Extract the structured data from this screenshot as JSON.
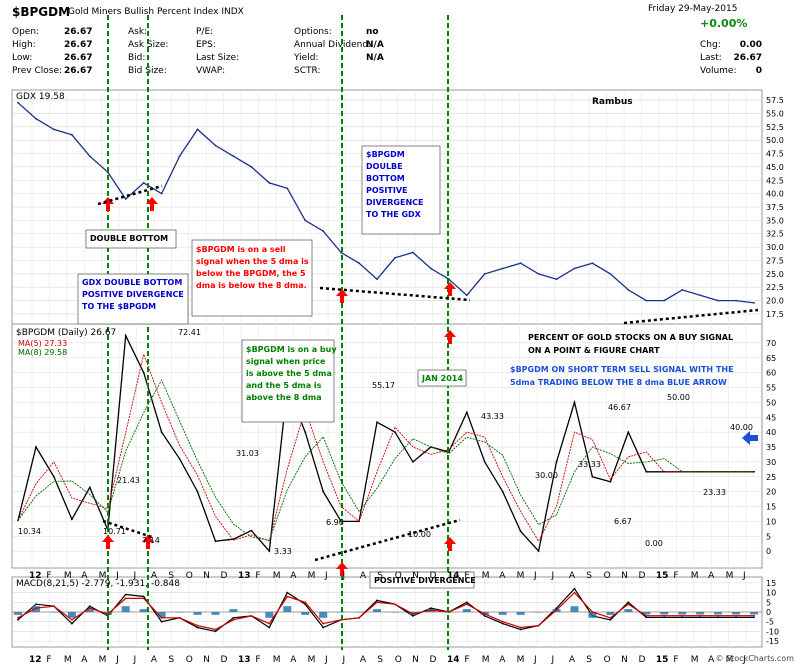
{
  "header": {
    "symbol": "$BPGDM",
    "title": "Gold Miners Bullish Percent Index",
    "exchange": "INDX",
    "date": "Friday  29-May-2015",
    "change_pct": "+0.00%",
    "quote_rows": [
      {
        "k1": "Open:",
        "v1": "26.67",
        "k2": "Ask:",
        "k3": "P/E:",
        "k4": "Options:",
        "v4": "no"
      },
      {
        "k1": "High:",
        "v1": "26.67",
        "k2": "Ask Size:",
        "k3": "EPS:",
        "k4": "Annual Dividend:",
        "v4": "N/A"
      },
      {
        "k1": "Low:",
        "v1": "26.67",
        "k2": "Bid:",
        "k3": "Last Size:",
        "k4": "Yield:",
        "v4": "N/A"
      },
      {
        "k1": "Prev Close:",
        "v1": "26.67",
        "k2": "Bid Size:",
        "k3": "VWAP:",
        "k4": "SCTR:",
        "v4": ""
      }
    ],
    "right_rows": [
      {
        "k": "Chg:",
        "v": "0.00"
      },
      {
        "k": "Last:",
        "v": "26.67"
      },
      {
        "k": "Volume:",
        "v": "0"
      }
    ]
  },
  "watermark": "© StockCharts.com",
  "colors": {
    "price_line": "#1a2f8c",
    "ma5": "#cc0000",
    "ma8": "#006600",
    "green_vline": "#008000",
    "red_arrow": "#ff0000",
    "annotation_red": "#ff0000",
    "annotation_blue": "#0000cc",
    "annotation_green": "#008000",
    "macd_hist": "#1f6fa8"
  },
  "chart_data": [
    {
      "type": "line",
      "title": "GDX 19.58",
      "attribution": "Rambus",
      "ylim": [
        16,
        59
      ],
      "yticks": [
        17.5,
        20.0,
        22.5,
        25.0,
        27.5,
        30.0,
        32.5,
        35.0,
        37.5,
        40.0,
        42.5,
        45.0,
        47.5,
        50.0,
        52.5,
        55.0,
        57.5
      ],
      "ytick_labels": [
        "17.5",
        "20.0",
        "22.5",
        "25.0",
        "27.5",
        "30.0",
        "32.5",
        "35.0",
        "37.5",
        "40.0",
        "42.5",
        "45.0",
        "47.5",
        "50.0",
        "52.5",
        "55.0",
        "57.5"
      ],
      "x": [
        0,
        1,
        2,
        3,
        4,
        5,
        6,
        7,
        8,
        9,
        10,
        11,
        12,
        13,
        14,
        15,
        16,
        17,
        18,
        19,
        20,
        21,
        22,
        23,
        24,
        25,
        26,
        27,
        28,
        29,
        30,
        31,
        32,
        33,
        34,
        35,
        36,
        37,
        38,
        39,
        40,
        41
      ],
      "series": [
        {
          "values": [
            57,
            54,
            52,
            51,
            47,
            44,
            39,
            42,
            40,
            47,
            52,
            49,
            47,
            45,
            42,
            41,
            35,
            33,
            29,
            27,
            24,
            28,
            29,
            26,
            24,
            21,
            25,
            26,
            27,
            25,
            24,
            26,
            27,
            25,
            22,
            20,
            20,
            22,
            21,
            20,
            20,
            19.58
          ]
        }
      ],
      "annotations": [
        "DOUBLE BOTTOM",
        "GDX DOUBLE BOTTOM POSITIVE DIVERGENCE TO THE $BPGDM",
        "$BPGDM is on a sell signal when the 5 dma is below the BPGDM, the 5 dma is below the 8 dma.",
        "$BPGDM DOULBE BOTTOM POSITIVE DIVERGENCE TO THE GDX"
      ]
    },
    {
      "type": "line",
      "title": "$BPGDM (Daily) 26.67",
      "legend": [
        "MA(5) 27.33",
        "MA(8) 29.58"
      ],
      "ylim": [
        -5,
        75
      ],
      "yticks": [
        0,
        5,
        10,
        15,
        20,
        25,
        30,
        35,
        40,
        45,
        50,
        55,
        60,
        65,
        70
      ],
      "ytick_labels": [
        "0",
        "5",
        "10",
        "15",
        "20",
        "25",
        "30",
        "35",
        "40",
        "45",
        "50",
        "55",
        "60",
        "65",
        "70"
      ],
      "x": [
        0,
        1,
        2,
        3,
        4,
        5,
        6,
        7,
        8,
        9,
        10,
        11,
        12,
        13,
        14,
        15,
        16,
        17,
        18,
        19,
        20,
        21,
        22,
        23,
        24,
        25,
        26,
        27,
        28,
        29,
        30,
        31,
        32,
        33,
        34,
        35,
        36,
        37,
        38,
        39,
        40,
        41
      ],
      "series": [
        {
          "name": "$BPGDM",
          "values": [
            10.34,
            35,
            25,
            10.71,
            21.43,
            7.14,
            72.41,
            60,
            40,
            31.03,
            20,
            3.33,
            4,
            6.9,
            0,
            55.17,
            40,
            20,
            10,
            10,
            43.33,
            40,
            30,
            35,
            33.33,
            46.67,
            30,
            20,
            6.67,
            0,
            30,
            50,
            25,
            23.33,
            40,
            26.67,
            26.67,
            26.67,
            26.67,
            26.67,
            26.67,
            26.67
          ]
        }
      ],
      "data_labels": [
        "10.34",
        "21.43",
        "10.71",
        "7.14",
        "72.41",
        "31.03",
        "3.33",
        "6.90",
        "55.17",
        "10.00",
        "43.33",
        "30.00",
        "33.33",
        "46.67",
        "6.67",
        "0.00",
        "50.00",
        "23.33",
        "40.00"
      ],
      "annotations": [
        "$BPGDM is on a buy signal when price is above the 5 dma and the 5 dma is above the 8 dma",
        "PERCENT OF GOLD STOCKS ON A BUY SIGNAL ON A POINT & FIGURE CHART",
        "$BPGDM ON SHORT TERM SELL SIGNAL WITH THE 5dma TRADING BELOW THE 8 dma BLUE ARROW",
        "JAN 2014",
        "POSITIVE DIVERGENCE"
      ]
    },
    {
      "type": "line",
      "title": "MACD(8,21,5) -2.779, -1.931, -0.848",
      "ylim": [
        -17,
        17
      ],
      "yticks": [
        -15,
        -10,
        -5,
        0,
        5,
        10,
        15
      ],
      "ytick_labels": [
        "-15",
        "-10",
        "-5",
        "0",
        "5",
        "10",
        "15"
      ],
      "x": [
        0,
        1,
        2,
        3,
        4,
        5,
        6,
        7,
        8,
        9,
        10,
        11,
        12,
        13,
        14,
        15,
        16,
        17,
        18,
        19,
        20,
        21,
        22,
        23,
        24,
        25,
        26,
        27,
        28,
        29,
        30,
        31,
        32,
        33,
        34,
        35,
        36,
        37,
        38,
        39,
        40,
        41
      ],
      "series": [
        {
          "name": "MACD",
          "values": [
            -4,
            4,
            3,
            -6,
            3,
            -2,
            9,
            8,
            -5,
            -3,
            -8,
            -10,
            -3,
            -2,
            -8,
            10,
            4,
            -8,
            -4,
            -3,
            6,
            4,
            -2,
            2,
            0,
            5,
            -2,
            -6,
            -9,
            -7,
            2,
            12,
            -2,
            -4,
            5,
            -2.779,
            -2.779,
            -2.779,
            -2.779,
            -2.779,
            -2.779,
            -2.779
          ]
        },
        {
          "name": "Signal",
          "values": [
            -3,
            2,
            3,
            -4,
            2,
            -1,
            7,
            7,
            -3,
            -3,
            -7,
            -9,
            -4,
            -2,
            -6,
            8,
            5,
            -6,
            -4,
            -3,
            5,
            4,
            -1,
            1,
            0,
            4,
            -1,
            -5,
            -8,
            -7,
            1,
            10,
            0,
            -3,
            4,
            -1.931,
            -1.931,
            -1.931,
            -1.931,
            -1.931,
            -1.931,
            -1.931
          ]
        }
      ]
    }
  ],
  "x_axis": {
    "labels": [
      "12",
      "F",
      "M",
      "A",
      "M",
      "J",
      "J",
      "A",
      "S",
      "O",
      "N",
      "D",
      "13",
      "F",
      "M",
      "A",
      "M",
      "J",
      "J",
      "A",
      "S",
      "O",
      "N",
      "D",
      "14",
      "F",
      "M",
      "A",
      "M",
      "J",
      "J",
      "A",
      "S",
      "O",
      "N",
      "D",
      "15",
      "F",
      "M",
      "A",
      "M",
      "J"
    ],
    "bold_labels": [
      "12",
      "13",
      "14",
      "15"
    ]
  }
}
